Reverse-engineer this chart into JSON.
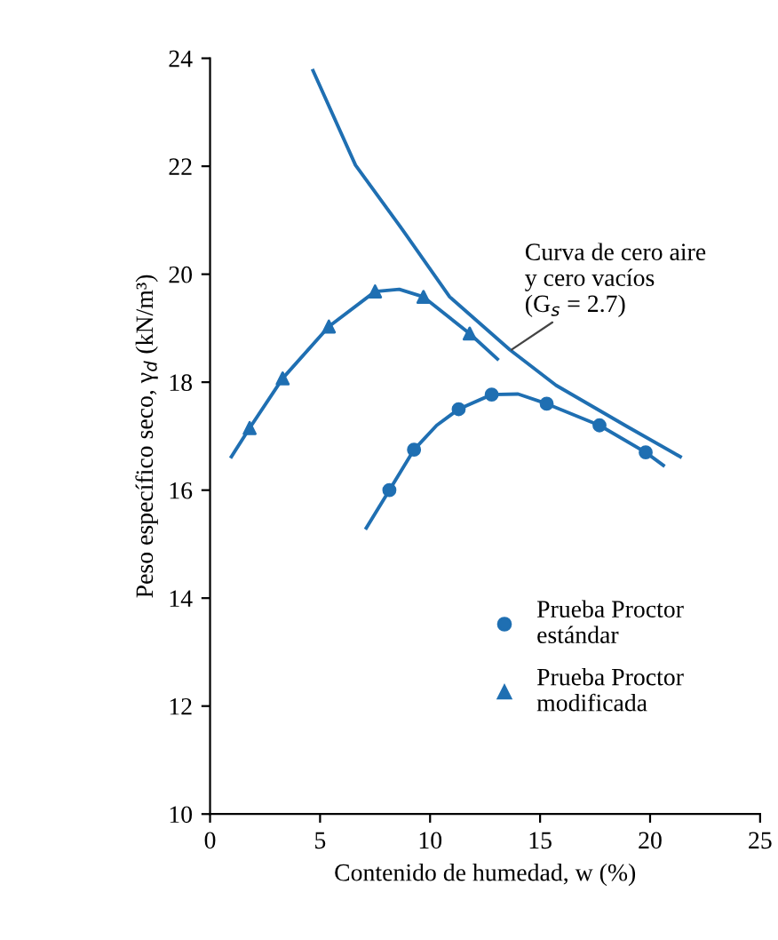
{
  "chart_data": {
    "type": "line",
    "xlabel": "Contenido de humedad, w (%)",
    "ylabel": "Peso específico seco, γ$_{d}$ (kN/m³)",
    "xlim": [
      0,
      25
    ],
    "ylim": [
      10,
      24
    ],
    "xticks": [
      0,
      5,
      10,
      15,
      20,
      25
    ],
    "yticks": [
      10,
      12,
      14,
      16,
      18,
      20,
      22,
      24
    ],
    "grid": false,
    "legend": "lower right",
    "annotations": [
      {
        "text": "Curva de cero aire\ny cero vacíos\n(G$_{s}$ = 2.7)",
        "x": 13.7,
        "y": 18.6
      }
    ],
    "series": [
      {
        "name": "Prueba Proctor\nestándar",
        "type": "scatter",
        "marker": "circle",
        "color": "#1f6fb2",
        "x": [
          8.15,
          9.27,
          11.3,
          12.8,
          15.3,
          17.7,
          19.8
        ],
        "values": [
          16.0,
          16.75,
          17.5,
          17.77,
          17.6,
          17.2,
          16.7
        ]
      },
      {
        "name": "Prueba Proctor\nmodificada",
        "type": "scatter",
        "marker": "triangle",
        "color": "#1f6fb2",
        "x": [
          1.8,
          3.3,
          5.4,
          7.5,
          9.7,
          11.8
        ],
        "values": [
          17.15,
          18.07,
          19.03,
          19.68,
          19.58,
          18.9
        ]
      },
      {
        "color": "#1f6fb2",
        "x": [
          7.1,
          8.15,
          9.27,
          10.3,
          11.3,
          12.8,
          14.0,
          15.3,
          17.7,
          19.8,
          20.6
        ],
        "values": [
          15.3,
          16.0,
          16.75,
          17.2,
          17.5,
          17.77,
          17.78,
          17.6,
          17.2,
          16.7,
          16.46
        ]
      },
      {
        "color": "#1f6fb2",
        "x": [
          0.97,
          1.8,
          3.3,
          5.4,
          7.5,
          8.6,
          9.7,
          11.8,
          13.06
        ],
        "values": [
          16.62,
          17.15,
          18.07,
          19.03,
          19.68,
          19.72,
          19.58,
          18.9,
          18.43
        ]
      },
      {
        "color": "#1f6fb2",
        "x": [
          4.68,
          6.61,
          8.79,
          10.89,
          13.63,
          15.73,
          18.95,
          21.37
        ],
        "values": [
          23.77,
          22.02,
          20.8,
          19.58,
          18.6,
          17.94,
          17.18,
          16.62
        ]
      }
    ]
  }
}
